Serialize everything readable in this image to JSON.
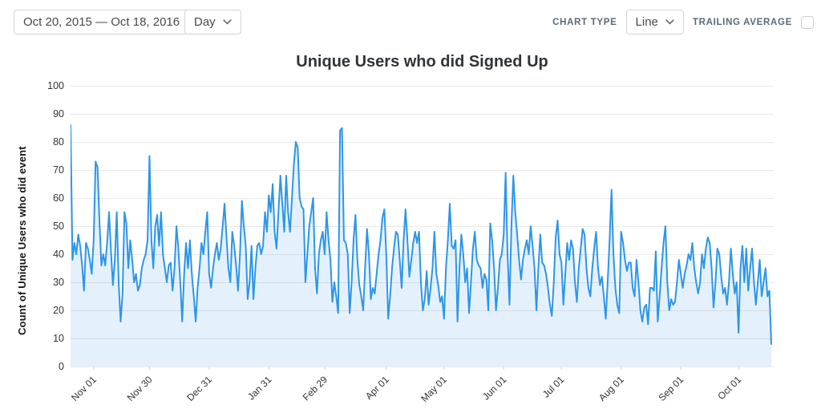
{
  "toolbar": {
    "date_range": "Oct 20, 2015 — Oct 18, 2016",
    "granularity": "Day",
    "chart_type_label": "CHART TYPE",
    "chart_type_value": "Line",
    "trailing_average_label": "TRAILING AVERAGE",
    "trailing_average_checked": false
  },
  "chart_data": {
    "type": "line",
    "title": "Unique Users who did Signed Up",
    "ylabel": "Count of Unique Users who did event",
    "xlabel": "",
    "ylim": [
      0,
      100
    ],
    "grid": true,
    "legend_position": "none",
    "line_color": "#2d96e8",
    "fill_color": "#2d96e8",
    "fill_opacity": 0.13,
    "grid_color": "#e9e9e9",
    "tick_color": "#cfcfcf",
    "x_ticks": [
      {
        "label": "Nov 01",
        "day": 12
      },
      {
        "label": "Nov 30",
        "day": 41
      },
      {
        "label": "Dec 31",
        "day": 72
      },
      {
        "label": "Jan 31",
        "day": 103
      },
      {
        "label": "Feb 29",
        "day": 132
      },
      {
        "label": "Apr 01",
        "day": 164
      },
      {
        "label": "May 01",
        "day": 194
      },
      {
        "label": "Jun 01",
        "day": 225
      },
      {
        "label": "Jul 01",
        "day": 255
      },
      {
        "label": "Aug 01",
        "day": 286
      },
      {
        "label": "Sep 01",
        "day": 317
      },
      {
        "label": "Oct 01",
        "day": 347
      }
    ],
    "y_ticks": [
      0,
      10,
      20,
      30,
      40,
      50,
      60,
      70,
      80,
      90,
      100
    ],
    "series": [
      {
        "name": "Signed Up",
        "start_date": "Oct 20, 2015",
        "end_date": "Oct 18, 2016",
        "values": [
          86,
          38,
          44,
          40,
          47,
          43,
          36,
          27,
          44,
          42,
          38,
          33,
          45,
          73,
          71,
          52,
          36,
          40,
          36,
          44,
          55,
          41,
          29,
          38,
          55,
          30,
          16,
          26,
          55,
          51,
          35,
          45,
          38,
          30,
          33,
          27,
          29,
          35,
          38,
          40,
          45,
          75,
          45,
          35,
          50,
          54,
          43,
          55,
          40,
          35,
          30,
          36,
          37,
          27,
          35,
          50,
          42,
          30,
          16,
          33,
          44,
          35,
          45,
          33,
          25,
          16,
          28,
          35,
          44,
          40,
          48,
          55,
          33,
          28,
          35,
          40,
          44,
          38,
          42,
          50,
          58,
          46,
          35,
          30,
          48,
          43,
          36,
          27,
          40,
          59,
          50,
          43,
          24,
          30,
          43,
          24,
          35,
          43,
          44,
          40,
          43,
          55,
          48,
          61,
          55,
          65,
          48,
          42,
          55,
          68,
          58,
          48,
          68,
          55,
          48,
          60,
          72,
          80,
          78,
          60,
          57,
          56,
          30,
          40,
          50,
          55,
          60,
          35,
          26,
          40,
          45,
          48,
          40,
          55,
          45,
          38,
          23,
          30,
          25,
          19,
          84,
          85,
          45,
          44,
          40,
          19,
          30,
          45,
          54,
          38,
          29,
          25,
          20,
          35,
          49,
          40,
          24,
          28,
          26,
          33,
          40,
          45,
          53,
          56,
          40,
          17,
          25,
          35,
          42,
          48,
          47,
          38,
          28,
          45,
          56,
          45,
          32,
          38,
          44,
          48,
          44,
          48,
          30,
          20,
          24,
          34,
          22,
          28,
          35,
          48,
          33,
          29,
          23,
          25,
          17,
          35,
          45,
          58,
          43,
          42,
          45,
          16,
          35,
          47,
          40,
          30,
          35,
          19,
          30,
          42,
          48,
          38,
          36,
          35,
          28,
          33,
          31,
          20,
          51,
          45,
          35,
          20,
          28,
          38,
          40,
          47,
          69,
          40,
          22,
          50,
          68,
          55,
          47,
          38,
          31,
          38,
          42,
          45,
          40,
          50,
          43,
          35,
          20,
          35,
          47,
          37,
          36,
          33,
          28,
          22,
          18,
          30,
          46,
          52,
          40,
          37,
          22,
          33,
          44,
          38,
          45,
          42,
          30,
          23,
          35,
          42,
          49,
          47,
          35,
          28,
          25,
          35,
          42,
          48,
          35,
          29,
          32,
          25,
          17,
          30,
          45,
          63,
          40,
          28,
          22,
          19,
          48,
          44,
          38,
          34,
          37,
          37,
          28,
          25,
          38,
          30,
          20,
          16,
          21,
          22,
          15,
          28,
          28,
          27,
          41,
          16,
          25,
          35,
          44,
          50,
          30,
          20,
          24,
          22,
          23,
          30,
          38,
          33,
          28,
          33,
          36,
          40,
          38,
          44,
          35,
          30,
          26,
          30,
          40,
          35,
          42,
          46,
          44,
          35,
          21,
          30,
          42,
          40,
          32,
          26,
          28,
          22,
          30,
          42,
          33,
          26,
          30,
          12,
          35,
          43,
          30,
          42,
          27,
          35,
          42,
          30,
          22,
          30,
          38,
          25,
          30,
          35,
          25,
          27,
          8
        ]
      }
    ]
  }
}
